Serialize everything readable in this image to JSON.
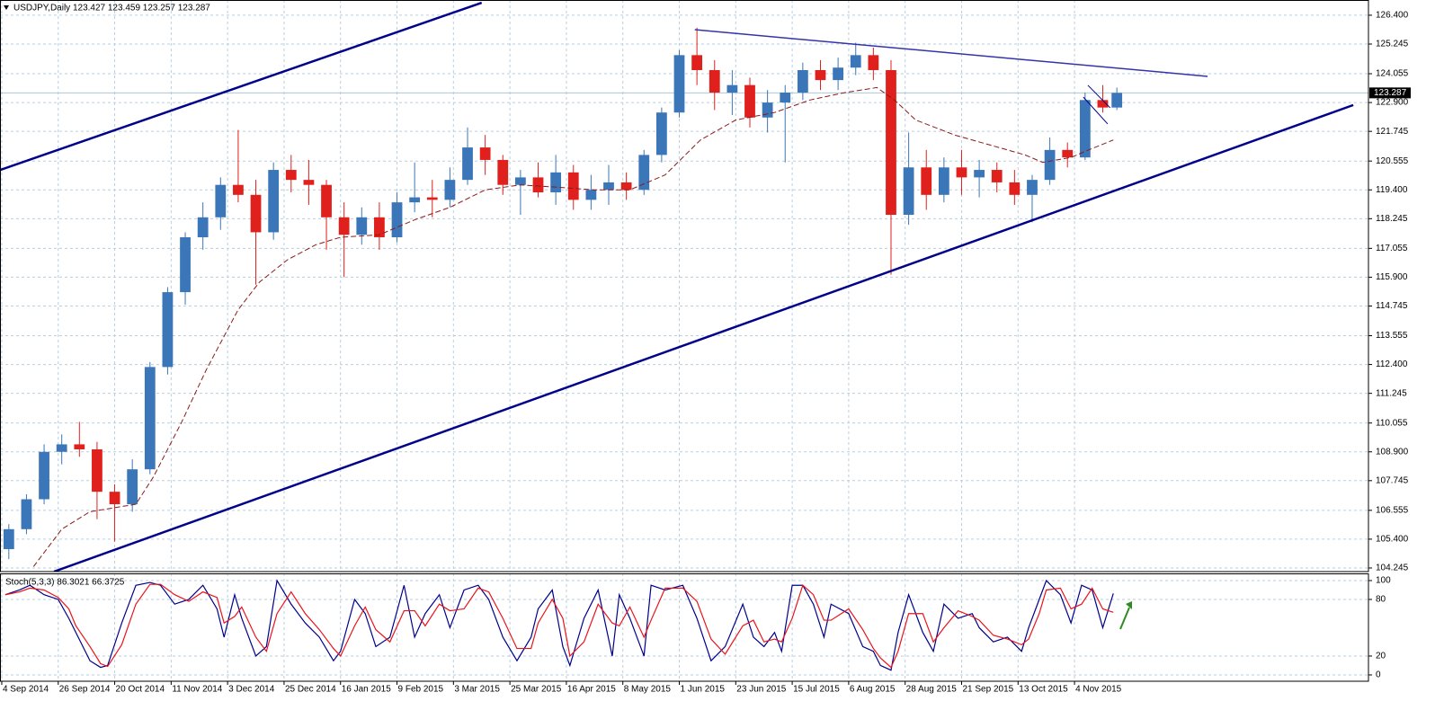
{
  "chart_data": {
    "type": "candlestick",
    "title": "USDJPY,Daily  123.427 123.459 123.257 123.287",
    "x": [
      2,
      7,
      12,
      17,
      22,
      27,
      32,
      37,
      42,
      47,
      52,
      57,
      62,
      67,
      72,
      77,
      82,
      87,
      92,
      97,
      102,
      107,
      112,
      117,
      122,
      127,
      132,
      137,
      142,
      147,
      152,
      157,
      162,
      167,
      172,
      177,
      182,
      187,
      192,
      197,
      202,
      207,
      212,
      217,
      222,
      227,
      232,
      237,
      242,
      247,
      252,
      257,
      262,
      267,
      272,
      277,
      282,
      287,
      292,
      297,
      302,
      307,
      312,
      316
    ],
    "open": [
      105.0,
      105.8,
      107.0,
      108.9,
      109.2,
      109.0,
      107.3,
      106.8,
      108.2,
      112.3,
      115.3,
      117.5,
      118.3,
      119.6,
      119.2,
      117.7,
      120.2,
      119.8,
      119.6,
      118.3,
      117.6,
      118.3,
      117.5,
      118.9,
      119.1,
      119.0,
      119.8,
      121.1,
      120.6,
      119.6,
      119.9,
      119.3,
      120.1,
      119.0,
      119.4,
      119.7,
      119.4,
      120.8,
      122.5,
      124.8,
      124.2,
      123.3,
      123.6,
      122.3,
      122.9,
      123.3,
      124.2,
      123.8,
      124.3,
      124.8,
      124.2,
      118.4,
      120.3,
      119.2,
      120.3,
      119.9,
      120.2,
      119.7,
      119.2,
      119.8,
      121.0,
      120.7,
      123.0,
      122.7
    ],
    "high": [
      106.0,
      107.2,
      109.2,
      109.6,
      110.1,
      109.3,
      107.6,
      108.6,
      112.5,
      115.5,
      117.7,
      118.9,
      119.9,
      121.8,
      119.8,
      120.5,
      120.8,
      120.6,
      119.8,
      118.9,
      118.7,
      118.9,
      119.3,
      120.5,
      119.8,
      120.3,
      121.9,
      121.6,
      120.8,
      120.2,
      120.5,
      120.8,
      120.4,
      120.0,
      120.4,
      120.1,
      121.0,
      122.7,
      125.0,
      125.9,
      124.6,
      124.2,
      123.9,
      123.4,
      123.6,
      124.5,
      124.6,
      124.7,
      125.3,
      125.1,
      124.6,
      121.7,
      121.0,
      120.7,
      121.0,
      120.6,
      120.5,
      120.2,
      120.0,
      121.5,
      121.3,
      123.3,
      123.6,
      123.5
    ],
    "low": [
      104.6,
      105.6,
      106.8,
      108.4,
      108.7,
      106.2,
      105.3,
      106.5,
      108.0,
      112.0,
      114.8,
      117.0,
      117.8,
      118.9,
      115.6,
      117.4,
      119.3,
      118.8,
      117.0,
      115.9,
      117.2,
      117.0,
      117.3,
      118.5,
      118.3,
      118.7,
      119.6,
      120.0,
      119.2,
      118.4,
      119.1,
      118.8,
      118.6,
      118.6,
      118.8,
      119.0,
      119.2,
      120.5,
      122.3,
      123.6,
      122.6,
      122.4,
      121.9,
      121.7,
      120.5,
      123.0,
      123.4,
      123.4,
      124.0,
      123.8,
      116.0,
      118.0,
      118.6,
      118.9,
      119.2,
      119.1,
      119.3,
      118.8,
      118.1,
      119.6,
      120.3,
      120.6,
      122.5,
      122.6
    ],
    "close": [
      105.8,
      107.0,
      108.9,
      109.2,
      109.0,
      107.3,
      106.8,
      108.2,
      112.3,
      115.3,
      117.5,
      118.3,
      119.6,
      119.2,
      117.7,
      120.2,
      119.8,
      119.6,
      118.3,
      117.6,
      118.3,
      117.5,
      118.9,
      119.1,
      119.0,
      119.8,
      121.1,
      120.6,
      119.6,
      119.9,
      119.3,
      120.1,
      119.0,
      119.4,
      119.7,
      119.4,
      120.8,
      122.5,
      124.8,
      124.2,
      123.3,
      123.6,
      122.3,
      122.9,
      123.3,
      124.2,
      123.8,
      124.3,
      124.8,
      124.2,
      118.4,
      120.3,
      119.2,
      120.3,
      119.9,
      120.2,
      119.7,
      119.2,
      119.8,
      121.0,
      120.7,
      123.0,
      122.7,
      123.287
    ],
    "up_color": "#3a76b8",
    "down_color": "#e0201c",
    "xlim": [
      -0.5,
      387.3
    ],
    "ylim": [
      104.1,
      127.01
    ],
    "grid": true,
    "yticks": [
      {
        "value": 126.4,
        "label": "126.400"
      },
      125.245,
      124.055,
      {
        "value": 122.9,
        "label": "122.900"
      },
      121.745,
      120.555,
      {
        "value": 119.4,
        "label": "119.400"
      },
      118.245,
      117.055,
      {
        "value": 115.9,
        "label": "115.900"
      },
      114.745,
      113.555,
      {
        "value": 112.4,
        "label": "112.400"
      },
      111.245,
      110.055,
      {
        "value": 108.9,
        "label": "108.900"
      },
      107.745,
      106.555,
      {
        "value": 105.4,
        "label": "105.400"
      },
      104.245
    ],
    "xticks": [
      {
        "value": 0,
        "label": "4 Sep 2014"
      },
      {
        "value": 16,
        "label": "26 Sep 2014"
      },
      {
        "value": 32,
        "label": "20 Oct 2014"
      },
      {
        "value": 48,
        "label": "11 Nov 2014"
      },
      {
        "value": 64,
        "label": "3 Dec 2014"
      },
      {
        "value": 80,
        "label": "25 Dec 2014"
      },
      {
        "value": 96,
        "label": "16 Jan 2015"
      },
      {
        "value": 112,
        "label": "9 Feb 2015"
      },
      {
        "value": 128,
        "label": "3 Mar 2015"
      },
      {
        "value": 144,
        "label": "25 Mar 2015"
      },
      {
        "value": 160,
        "label": "16 Apr 2015"
      },
      {
        "value": 176,
        "label": "8 May 2015"
      },
      {
        "value": 192,
        "label": "1 Jun 2015"
      },
      {
        "value": 208,
        "label": "23 Jun 2015"
      },
      {
        "value": 224,
        "label": "15 Jul 2015"
      },
      {
        "value": 240,
        "label": "6 Aug 2015"
      },
      {
        "value": 256,
        "label": "28 Aug 2015"
      },
      {
        "value": 272,
        "label": "21 Sep 2015"
      },
      {
        "value": 288,
        "label": "13 Oct 2015"
      },
      {
        "value": 304,
        "label": "4 Nov 2015"
      }
    ],
    "last_price": {
      "value": 123.287,
      "label": "123.287"
    },
    "ma": {
      "color": "#8b1a1a",
      "x": [
        9,
        17,
        25,
        38,
        43,
        51,
        58,
        67,
        73,
        81,
        89,
        96,
        107,
        117,
        127,
        137,
        147,
        158,
        168,
        178,
        188,
        198,
        208,
        219,
        229,
        239,
        248,
        253,
        259,
        270,
        280,
        290,
        295,
        303,
        308,
        315
      ],
      "values": [
        104.3,
        105.8,
        106.5,
        106.8,
        107.9,
        110.1,
        112.2,
        114.6,
        115.7,
        116.6,
        117.2,
        117.5,
        117.6,
        118.2,
        118.7,
        119.4,
        119.6,
        119.5,
        119.4,
        119.4,
        120.0,
        121.4,
        122.2,
        122.5,
        123.0,
        123.3,
        123.5,
        123.0,
        122.2,
        121.6,
        121.2,
        120.8,
        120.5,
        120.7,
        121.0,
        121.4
      ]
    },
    "trendlines": [
      {
        "color": "#00008b",
        "width": 2.5,
        "x": [
          -1,
          136
        ],
        "values": [
          120.17,
          126.9
        ]
      },
      {
        "color": "#00008b",
        "width": 2.5,
        "x": [
          14.8,
          383
        ],
        "values": [
          104.1,
          122.8
        ]
      },
      {
        "color": "#3434a8",
        "width": 1.5,
        "x": [
          196.4,
          341.7
        ],
        "values": [
          125.82,
          123.95
        ]
      },
      {
        "color": "#00008b",
        "width": 1,
        "x": [
          307.8,
          314.1
        ],
        "values": [
          123.59,
          122.69
        ]
      },
      {
        "color": "#00008b",
        "width": 1,
        "x": [
          306.5,
          313.4
        ],
        "values": [
          123.12,
          122.04
        ]
      }
    ],
    "indicator": {
      "type": "stochastic",
      "label": "Stoch(5,3,3) 86.3021 66.3725",
      "ylim": [
        -6.7,
        107.6
      ],
      "yticks": [
        100,
        80,
        20,
        0
      ],
      "x": [
        1,
        5,
        8,
        12,
        16,
        19,
        21,
        25,
        28,
        30,
        34,
        38,
        42,
        45,
        49,
        53,
        57,
        61,
        63,
        66,
        68,
        72,
        75,
        78,
        82,
        86,
        90,
        94,
        96,
        100,
        103,
        106,
        110,
        114,
        117,
        120,
        124,
        127,
        131,
        135,
        138,
        142,
        146,
        150,
        152,
        156,
        159,
        161,
        165,
        169,
        173,
        175,
        178,
        182,
        184,
        188,
        193,
        197,
        201,
        205,
        210,
        213,
        216,
        219,
        221,
        224,
        227,
        230,
        233,
        235,
        240,
        244,
        247,
        249,
        252,
        254,
        257,
        261,
        264,
        267,
        271,
        275,
        277,
        281,
        285,
        289,
        291,
        294,
        296,
        300,
        303,
        306,
        309,
        312,
        315
      ],
      "series": [
        {
          "color": "#00008b",
          "values": [
            85,
            90,
            95,
            85,
            80,
            60,
            45,
            15,
            8,
            10,
            55,
            95,
            98,
            95,
            75,
            80,
            95,
            70,
            40,
            85,
            60,
            20,
            30,
            100,
            75,
            55,
            40,
            15,
            25,
            80,
            65,
            30,
            40,
            95,
            40,
            65,
            85,
            50,
            90,
            95,
            80,
            40,
            15,
            40,
            70,
            90,
            30,
            10,
            60,
            90,
            20,
            85,
            60,
            20,
            95,
            90,
            95,
            60,
            15,
            30,
            75,
            40,
            30,
            45,
            25,
            95,
            95,
            75,
            40,
            75,
            65,
            30,
            25,
            10,
            5,
            45,
            85,
            45,
            25,
            75,
            60,
            65,
            50,
            35,
            40,
            25,
            50,
            80,
            100,
            85,
            55,
            95,
            90,
            50,
            86.3021
          ]
        },
        {
          "color": "#e8141c",
          "values": [
            85,
            88,
            92,
            90,
            82,
            70,
            52,
            30,
            12,
            9,
            32,
            75,
            96,
            96,
            85,
            78,
            88,
            82,
            55,
            62,
            72,
            40,
            25,
            65,
            88,
            65,
            48,
            28,
            20,
            52,
            72,
            48,
            35,
            68,
            68,
            52,
            75,
            68,
            70,
            92,
            88,
            60,
            28,
            28,
            55,
            80,
            60,
            20,
            35,
            75,
            55,
            52,
            72,
            40,
            58,
            92,
            92,
            78,
            38,
            22,
            52,
            58,
            35,
            38,
            35,
            60,
            95,
            85,
            58,
            58,
            70,
            48,
            28,
            18,
            8,
            25,
            65,
            65,
            35,
            50,
            68,
            62,
            58,
            42,
            38,
            32,
            38,
            65,
            90,
            92,
            70,
            75,
            92,
            70,
            66.3725
          ]
        }
      ]
    }
  }
}
